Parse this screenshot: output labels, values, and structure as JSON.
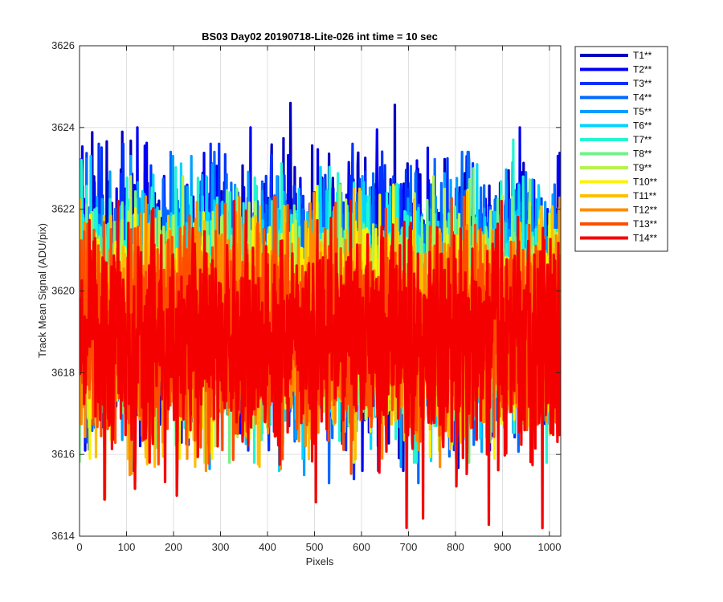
{
  "chart_data": {
    "type": "line",
    "title": "BS03 Day02 20190718-Lite-026 int time = 10 sec",
    "xlabel": "Pixels",
    "ylabel": "Track Mean Signal (ADU/pix)",
    "xlim": [
      0,
      1024
    ],
    "ylim": [
      3614,
      3626
    ],
    "xticks": [
      0,
      100,
      200,
      300,
      400,
      500,
      600,
      700,
      800,
      900,
      1000
    ],
    "yticks": [
      3614,
      3616,
      3618,
      3620,
      3622,
      3624,
      3626
    ],
    "grid": true,
    "legend_position": "outside-top-right",
    "n_points": 1024,
    "series": [
      {
        "name": "T1**",
        "color": "#0000BF",
        "mean": 3620.0,
        "min": 3615.6,
        "max": 3624.6
      },
      {
        "name": "T2**",
        "color": "#0000F5",
        "mean": 3619.9,
        "min": 3615.6,
        "max": 3624.0
      },
      {
        "name": "T3**",
        "color": "#0032FF",
        "mean": 3619.8,
        "min": 3615.4,
        "max": 3623.6
      },
      {
        "name": "T4**",
        "color": "#0069FF",
        "mean": 3619.8,
        "min": 3615.3,
        "max": 3623.4
      },
      {
        "name": "T5**",
        "color": "#009FFF",
        "mean": 3619.7,
        "min": 3615.5,
        "max": 3623.3
      },
      {
        "name": "T6**",
        "color": "#00D5FF",
        "mean": 3619.6,
        "min": 3615.6,
        "max": 3623.3
      },
      {
        "name": "T7**",
        "color": "#24F4D2",
        "mean": 3619.5,
        "min": 3615.8,
        "max": 3623.7
      },
      {
        "name": "T8**",
        "color": "#73F286",
        "mean": 3619.4,
        "min": 3615.8,
        "max": 3623.0
      },
      {
        "name": "T9**",
        "color": "#B8F24D",
        "mean": 3619.3,
        "min": 3615.8,
        "max": 3622.8
      },
      {
        "name": "T10**",
        "color": "#FFF200",
        "mean": 3619.2,
        "min": 3615.9,
        "max": 3622.6
      },
      {
        "name": "T11**",
        "color": "#FFBF00",
        "mean": 3619.1,
        "min": 3615.7,
        "max": 3622.5
      },
      {
        "name": "T12**",
        "color": "#FF8C00",
        "mean": 3619.0,
        "min": 3615.5,
        "max": 3622.4
      },
      {
        "name": "T13**",
        "color": "#FF4D00",
        "mean": 3618.9,
        "min": 3614.9,
        "max": 3622.3
      },
      {
        "name": "T14**",
        "color": "#F50000",
        "mean": 3618.8,
        "min": 3614.2,
        "max": 3622.2
      }
    ]
  }
}
